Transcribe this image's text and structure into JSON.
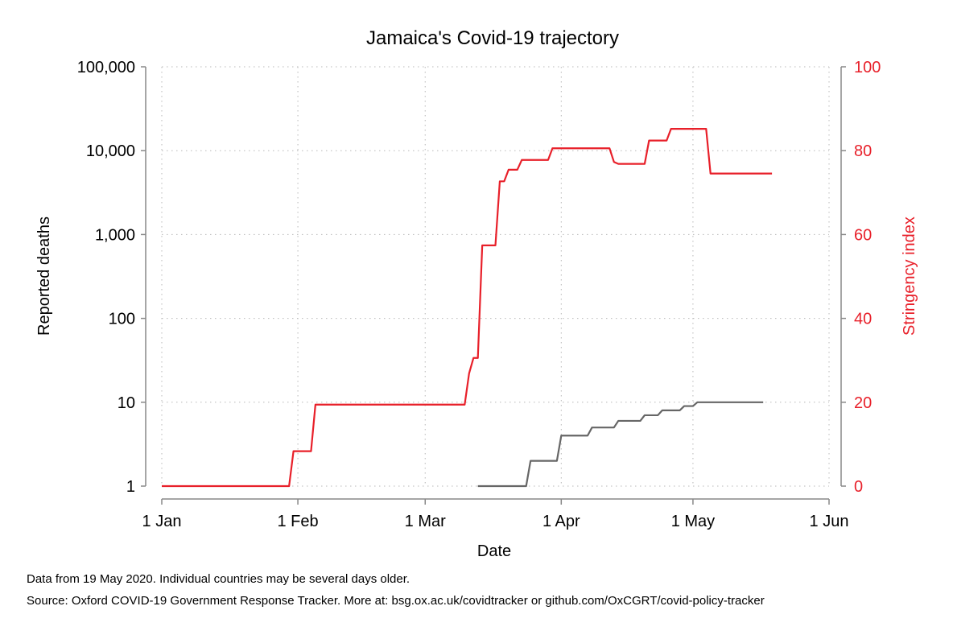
{
  "chart_data": {
    "type": "line",
    "title": "Jamaica's Covid-19 trajectory",
    "xlabel": "Date",
    "ylabel_left": "Reported deaths",
    "ylabel_right": "Stringency index",
    "x_ticks": [
      {
        "label": "1 Jan",
        "date": "2020-01-01"
      },
      {
        "label": "1 Feb",
        "date": "2020-02-01"
      },
      {
        "label": "1 Mar",
        "date": "2020-03-01"
      },
      {
        "label": "1 Apr",
        "date": "2020-04-01"
      },
      {
        "label": "1 May",
        "date": "2020-05-01"
      },
      {
        "label": "1 Jun",
        "date": "2020-06-01"
      }
    ],
    "xlim": [
      "2020-01-01",
      "2020-06-01"
    ],
    "y_left_scale": "log",
    "y_left_ticks": [
      {
        "label": "1",
        "value": 1
      },
      {
        "label": "10",
        "value": 10
      },
      {
        "label": "100",
        "value": 100
      },
      {
        "label": "1,000",
        "value": 1000
      },
      {
        "label": "10,000",
        "value": 10000
      },
      {
        "label": "100,000",
        "value": 100000
      }
    ],
    "y_left_range": [
      1,
      100000
    ],
    "y_right_ticks": [
      {
        "label": "0",
        "value": 0
      },
      {
        "label": "20",
        "value": 20
      },
      {
        "label": "40",
        "value": 40
      },
      {
        "label": "60",
        "value": 60
      },
      {
        "label": "80",
        "value": 80
      },
      {
        "label": "100",
        "value": 100
      }
    ],
    "y_right_range": [
      0,
      100
    ],
    "grid": true,
    "series": [
      {
        "key": "stringency",
        "axis": "right",
        "color": "#e8202a",
        "step": true,
        "points": [
          [
            "2020-01-01",
            0
          ],
          [
            "2020-01-31",
            8.33
          ],
          [
            "2020-02-05",
            19.44
          ],
          [
            "2020-03-11",
            26.85
          ],
          [
            "2020-03-12",
            30.56
          ],
          [
            "2020-03-14",
            57.41
          ],
          [
            "2020-03-18",
            72.69
          ],
          [
            "2020-03-20",
            75.46
          ],
          [
            "2020-03-23",
            77.78
          ],
          [
            "2020-03-30",
            80.56
          ],
          [
            "2020-04-13",
            77.31
          ],
          [
            "2020-04-14",
            76.85
          ],
          [
            "2020-04-21",
            82.41
          ],
          [
            "2020-04-26",
            85.19
          ],
          [
            "2020-05-05",
            74.54
          ],
          [
            "2020-05-19",
            74.54
          ]
        ]
      },
      {
        "key": "deaths",
        "axis": "left",
        "color": "#666666",
        "step": true,
        "points": [
          [
            "2020-03-13",
            1
          ],
          [
            "2020-03-25",
            2
          ],
          [
            "2020-04-01",
            4
          ],
          [
            "2020-04-08",
            5
          ],
          [
            "2020-04-14",
            6
          ],
          [
            "2020-04-20",
            7
          ],
          [
            "2020-04-24",
            8
          ],
          [
            "2020-04-29",
            9
          ],
          [
            "2020-05-02",
            10
          ],
          [
            "2020-05-17",
            10
          ]
        ]
      }
    ]
  },
  "footnotes": {
    "line1": "Data from 19 May 2020. Individual countries may be several days older.",
    "line2": "Source: Oxford COVID-19 Government Response Tracker. More at: bsg.ox.ac.uk/covidtracker or github.com/OxCGRT/covid-policy-tracker"
  }
}
